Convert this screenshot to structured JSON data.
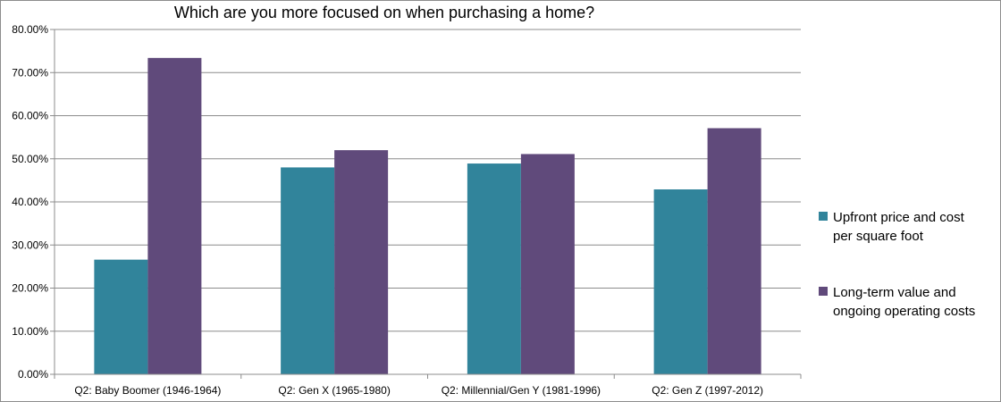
{
  "chart_data": {
    "type": "bar",
    "title": "Which are you more focused on when purchasing a home?",
    "categories": [
      "Q2: Baby Boomer (1946-1964)",
      "Q2: Gen X (1965-1980)",
      "Q2: Millennial/Gen Y (1981-1996)",
      "Q2: Gen Z (1997-2012)"
    ],
    "series": [
      {
        "name": "Upfront price and cost per square foot",
        "legend_lines": [
          "Upfront price and cost",
          "per square foot"
        ],
        "color": "#31849b",
        "values": [
          26.6,
          48.0,
          48.9,
          42.9
        ]
      },
      {
        "name": "Long-term value and ongoing operating costs",
        "legend_lines": [
          "Long-term value and",
          "ongoing operating costs"
        ],
        "color": "#604a7b",
        "values": [
          73.4,
          52.0,
          51.1,
          57.1
        ]
      }
    ],
    "ylim": [
      0,
      80
    ],
    "yticks": [
      0,
      10,
      20,
      30,
      40,
      50,
      60,
      70,
      80
    ],
    "ytick_labels": [
      "0.00%",
      "10.00%",
      "20.00%",
      "30.00%",
      "40.00%",
      "50.00%",
      "60.00%",
      "70.00%",
      "80.00%"
    ],
    "xlabel": "",
    "ylabel": "",
    "grid": true,
    "legend_position": "right"
  }
}
